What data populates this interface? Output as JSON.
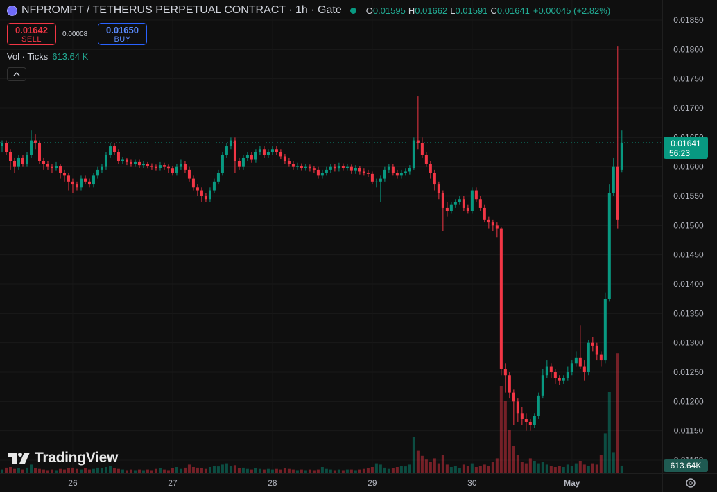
{
  "header": {
    "symbol": "NFPROMPT / TETHERUS PERPETUAL CONTRACT · 1h · Gate",
    "ohlc": [
      {
        "label": "O",
        "value": "0.01595"
      },
      {
        "label": "H",
        "value": "0.01662"
      },
      {
        "label": "L",
        "value": "0.01591"
      },
      {
        "label": "C",
        "value": "0.01641"
      }
    ],
    "change": "+0.00045 (+2.82%)",
    "sell": {
      "price": "0.01642",
      "label": "SELL"
    },
    "spread": "0.00008",
    "buy": {
      "price": "0.01650",
      "label": "BUY"
    },
    "brand": "TradingView"
  },
  "chart_data": {
    "type": "candlestick",
    "up_color": "#089981",
    "down_color": "#f23645",
    "grid": true,
    "xlim": [
      -0.5,
      158.7
    ],
    "xticks": [
      {
        "value": 17,
        "label": "26"
      },
      {
        "value": 41,
        "label": "27"
      },
      {
        "value": 65,
        "label": "28"
      },
      {
        "value": 89,
        "label": "29"
      },
      {
        "value": 113,
        "label": "30"
      },
      {
        "value": 137,
        "label": "May"
      }
    ],
    "ylim": [
      0.011,
      0.0185
    ],
    "yticks": [
      {
        "value": 0.0185,
        "label": "0.01850"
      },
      {
        "value": 0.018,
        "label": "0.01800"
      },
      {
        "value": 0.0175,
        "label": "0.01750"
      },
      {
        "value": 0.017,
        "label": "0.01700"
      },
      {
        "value": 0.0165,
        "label": "0.01650"
      },
      {
        "value": 0.016,
        "label": "0.01600"
      },
      {
        "value": 0.0155,
        "label": "0.01550"
      },
      {
        "value": 0.015,
        "label": "0.01500"
      },
      {
        "value": 0.0145,
        "label": "0.01450"
      },
      {
        "value": 0.014,
        "label": "0.01400"
      },
      {
        "value": 0.0135,
        "label": "0.01350"
      },
      {
        "value": 0.013,
        "label": "0.01300"
      },
      {
        "value": 0.0125,
        "label": "0.01250"
      },
      {
        "value": 0.012,
        "label": "0.01200"
      },
      {
        "value": 0.0115,
        "label": "0.01150"
      },
      {
        "value": 0.011,
        "label": "0.01100"
      }
    ],
    "last_price": {
      "value": 0.01641,
      "label": "0.01641",
      "countdown": "56:23"
    },
    "open": [
      0.01635,
      0.0164,
      0.01625,
      0.0161,
      0.016,
      0.01615,
      0.01605,
      0.0162,
      0.01645,
      0.0164,
      0.0161,
      0.01605,
      0.016,
      0.01598,
      0.01602,
      0.0159,
      0.01585,
      0.01575,
      0.0157,
      0.01565,
      0.0158,
      0.01575,
      0.0157,
      0.01585,
      0.01595,
      0.016,
      0.0162,
      0.01635,
      0.01625,
      0.0161,
      0.01612,
      0.01608,
      0.01605,
      0.01608,
      0.01603,
      0.01605,
      0.01602,
      0.016,
      0.01598,
      0.01603,
      0.016,
      0.01597,
      0.0159,
      0.016,
      0.01605,
      0.01595,
      0.0158,
      0.01565,
      0.0156,
      0.0155,
      0.01545,
      0.0156,
      0.01575,
      0.0159,
      0.0162,
      0.01635,
      0.01645,
      0.0161,
      0.016,
      0.01615,
      0.0162,
      0.01612,
      0.01625,
      0.0163,
      0.0162,
      0.01625,
      0.0163,
      0.01625,
      0.01618,
      0.0161,
      0.01605,
      0.016,
      0.01602,
      0.01598,
      0.016,
      0.01597,
      0.01595,
      0.01585,
      0.0159,
      0.01595,
      0.016,
      0.01597,
      0.01602,
      0.01598,
      0.016,
      0.01593,
      0.01598,
      0.01592,
      0.0159,
      0.01588,
      0.01575,
      0.01575,
      0.0158,
      0.01595,
      0.016,
      0.0159,
      0.01585,
      0.0159,
      0.01592,
      0.01598,
      0.01645,
      0.0164,
      0.0162,
      0.01605,
      0.0159,
      0.0157,
      0.01555,
      0.0153,
      0.01525,
      0.01535,
      0.0154,
      0.01545,
      0.0153,
      0.01525,
      0.0156,
      0.01545,
      0.0153,
      0.0151,
      0.01505,
      0.015,
      0.01495,
      0.01255,
      0.01245,
      0.01215,
      0.012,
      0.0118,
      0.0117,
      0.01165,
      0.0116,
      0.01175,
      0.0121,
      0.01245,
      0.0126,
      0.0125,
      0.0124,
      0.01235,
      0.0124,
      0.0125,
      0.01265,
      0.01275,
      0.0126,
      0.0125,
      0.013,
      0.01295,
      0.0128,
      0.0127,
      0.01375,
      0.01555,
      0.016,
      0.01595
    ],
    "high": [
      0.01645,
      0.01645,
      0.0163,
      0.01615,
      0.0162,
      0.0162,
      0.01625,
      0.01662,
      0.01655,
      0.01645,
      0.01615,
      0.0161,
      0.01605,
      0.01608,
      0.01605,
      0.01595,
      0.0159,
      0.0158,
      0.01575,
      0.01585,
      0.01585,
      0.0158,
      0.0159,
      0.016,
      0.01605,
      0.01625,
      0.0164,
      0.0164,
      0.0163,
      0.01617,
      0.01615,
      0.01612,
      0.01612,
      0.01612,
      0.0161,
      0.01608,
      0.01606,
      0.01604,
      0.01608,
      0.01607,
      0.01604,
      0.01602,
      0.01605,
      0.01612,
      0.0161,
      0.016,
      0.01585,
      0.0157,
      0.01565,
      0.01555,
      0.01565,
      0.0158,
      0.01595,
      0.01625,
      0.0164,
      0.0165,
      0.0165,
      0.01615,
      0.0162,
      0.01625,
      0.01625,
      0.0163,
      0.01635,
      0.01635,
      0.0163,
      0.01635,
      0.01635,
      0.0163,
      0.01622,
      0.01615,
      0.0161,
      0.01607,
      0.01606,
      0.01605,
      0.01604,
      0.01602,
      0.016,
      0.01595,
      0.016,
      0.01605,
      0.01605,
      0.01607,
      0.01606,
      0.01605,
      0.01604,
      0.01603,
      0.01602,
      0.01597,
      0.01595,
      0.01592,
      0.0158,
      0.01585,
      0.016,
      0.01605,
      0.01605,
      0.01595,
      0.01595,
      0.01597,
      0.01603,
      0.0165,
      0.0172,
      0.0165,
      0.01625,
      0.0161,
      0.01595,
      0.01575,
      0.0156,
      0.0154,
      0.0154,
      0.01545,
      0.0155,
      0.0155,
      0.01535,
      0.01565,
      0.01565,
      0.0155,
      0.01535,
      0.01515,
      0.0151,
      0.01505,
      0.01497,
      0.01265,
      0.0125,
      0.0122,
      0.01205,
      0.0119,
      0.0118,
      0.0117,
      0.0118,
      0.01215,
      0.01255,
      0.0127,
      0.01265,
      0.01255,
      0.01245,
      0.01245,
      0.0126,
      0.0127,
      0.01285,
      0.0133,
      0.0127,
      0.01305,
      0.0131,
      0.013,
      0.01285,
      0.01385,
      0.0157,
      0.01615,
      0.01805,
      0.01662
    ],
    "low": [
      0.01625,
      0.0162,
      0.01595,
      0.0159,
      0.01595,
      0.016,
      0.016,
      0.01615,
      0.0163,
      0.01605,
      0.01595,
      0.01595,
      0.0159,
      0.01593,
      0.0158,
      0.01575,
      0.0156,
      0.01555,
      0.0156,
      0.0156,
      0.0157,
      0.01565,
      0.01565,
      0.0158,
      0.0159,
      0.01595,
      0.01615,
      0.0162,
      0.01605,
      0.01605,
      0.01603,
      0.016,
      0.016,
      0.01598,
      0.01598,
      0.01597,
      0.01595,
      0.01593,
      0.01593,
      0.01595,
      0.0159,
      0.01585,
      0.01585,
      0.01595,
      0.0159,
      0.01575,
      0.0156,
      0.0155,
      0.0154,
      0.0154,
      0.0154,
      0.01555,
      0.0157,
      0.01585,
      0.01615,
      0.0163,
      0.0159,
      0.01595,
      0.01595,
      0.0161,
      0.01607,
      0.01607,
      0.0162,
      0.01615,
      0.01615,
      0.0162,
      0.0162,
      0.01613,
      0.01605,
      0.016,
      0.01595,
      0.01595,
      0.01593,
      0.01593,
      0.01592,
      0.0159,
      0.0158,
      0.0158,
      0.01585,
      0.0159,
      0.01592,
      0.01592,
      0.01593,
      0.01593,
      0.01588,
      0.01588,
      0.01587,
      0.01585,
      0.01583,
      0.0157,
      0.01565,
      0.0154,
      0.01575,
      0.0159,
      0.01585,
      0.0158,
      0.0158,
      0.01585,
      0.01587,
      0.01595,
      0.0163,
      0.01615,
      0.016,
      0.0158,
      0.0156,
      0.01545,
      0.0149,
      0.01515,
      0.0152,
      0.0153,
      0.01535,
      0.01525,
      0.0152,
      0.0152,
      0.0154,
      0.01525,
      0.01505,
      0.01495,
      0.0149,
      0.0148,
      0.01245,
      0.01215,
      0.01205,
      0.0116,
      0.01165,
      0.0116,
      0.0115,
      0.0115,
      0.01155,
      0.0117,
      0.01205,
      0.0124,
      0.0124,
      0.0123,
      0.01228,
      0.0123,
      0.01235,
      0.01245,
      0.0126,
      0.01255,
      0.01235,
      0.01245,
      0.01285,
      0.0127,
      0.0126,
      0.01265,
      0.0137,
      0.0155,
      0.01495,
      0.01591
    ],
    "close": [
      0.0164,
      0.01625,
      0.0161,
      0.016,
      0.01615,
      0.01605,
      0.0162,
      0.01645,
      0.0164,
      0.0161,
      0.01605,
      0.016,
      0.01598,
      0.01602,
      0.0159,
      0.01585,
      0.01575,
      0.0157,
      0.01565,
      0.0158,
      0.01575,
      0.0157,
      0.01585,
      0.01595,
      0.016,
      0.0162,
      0.01635,
      0.01625,
      0.0161,
      0.01612,
      0.01608,
      0.01605,
      0.01608,
      0.01603,
      0.01605,
      0.01602,
      0.016,
      0.01598,
      0.01603,
      0.016,
      0.01597,
      0.0159,
      0.016,
      0.01605,
      0.01595,
      0.0158,
      0.01565,
      0.0156,
      0.0155,
      0.01545,
      0.0156,
      0.01575,
      0.0159,
      0.0162,
      0.01635,
      0.01645,
      0.0161,
      0.016,
      0.01615,
      0.0162,
      0.01612,
      0.01625,
      0.0163,
      0.0162,
      0.01625,
      0.0163,
      0.01625,
      0.01618,
      0.0161,
      0.01605,
      0.016,
      0.01602,
      0.01598,
      0.016,
      0.01597,
      0.01595,
      0.01585,
      0.0159,
      0.01595,
      0.016,
      0.01597,
      0.01602,
      0.01598,
      0.016,
      0.01593,
      0.01598,
      0.01592,
      0.0159,
      0.01588,
      0.01575,
      0.01575,
      0.0158,
      0.01595,
      0.016,
      0.0159,
      0.01585,
      0.0159,
      0.01592,
      0.01598,
      0.01645,
      0.0164,
      0.0162,
      0.01605,
      0.0159,
      0.0157,
      0.01555,
      0.0153,
      0.01525,
      0.01535,
      0.0154,
      0.01545,
      0.0153,
      0.01525,
      0.0156,
      0.01545,
      0.0153,
      0.0151,
      0.01505,
      0.015,
      0.01495,
      0.01255,
      0.01245,
      0.01215,
      0.012,
      0.0118,
      0.0117,
      0.01165,
      0.0116,
      0.01175,
      0.0121,
      0.01245,
      0.0126,
      0.0125,
      0.0124,
      0.01235,
      0.0124,
      0.0125,
      0.01265,
      0.01275,
      0.0126,
      0.0125,
      0.013,
      0.01295,
      0.0128,
      0.0127,
      0.01375,
      0.01555,
      0.016,
      0.0151,
      0.01641
    ],
    "volume": {
      "label": "Vol · Ticks",
      "legend_value": "613.64 K",
      "axis_label": "613.64K",
      "ylim": [
        0,
        12000000
      ],
      "values": [
        300000,
        450000,
        500000,
        350000,
        400000,
        300000,
        450000,
        700000,
        400000,
        350000,
        300000,
        250000,
        300000,
        250000,
        350000,
        300000,
        400000,
        450000,
        350000,
        300000,
        400000,
        300000,
        350000,
        450000,
        400000,
        500000,
        600000,
        400000,
        350000,
        300000,
        250000,
        300000,
        250000,
        300000,
        250000,
        300000,
        250000,
        350000,
        400000,
        300000,
        250000,
        400000,
        500000,
        350000,
        450000,
        700000,
        500000,
        450000,
        400000,
        350000,
        500000,
        600000,
        550000,
        700000,
        800000,
        600000,
        650000,
        400000,
        450000,
        350000,
        300000,
        400000,
        350000,
        300000,
        350000,
        300000,
        350000,
        300000,
        400000,
        350000,
        300000,
        250000,
        300000,
        250000,
        300000,
        250000,
        300000,
        500000,
        350000,
        300000,
        250000,
        300000,
        250000,
        300000,
        300000,
        250000,
        300000,
        350000,
        400000,
        500000,
        800000,
        700000,
        450000,
        350000,
        400000,
        500000,
        600000,
        550000,
        700000,
        2900000,
        1800000,
        1400000,
        1100000,
        900000,
        1200000,
        800000,
        1500000,
        700000,
        500000,
        600000,
        400000,
        700000,
        600000,
        800000,
        500000,
        600000,
        700000,
        600000,
        900000,
        1200000,
        7000000,
        5800000,
        3500000,
        2200000,
        1500000,
        900000,
        800000,
        1200000,
        1000000,
        800000,
        900000,
        700000,
        600000,
        500000,
        600000,
        500000,
        700000,
        600000,
        800000,
        1000000,
        700000,
        600000,
        800000,
        700000,
        1500000,
        3200000,
        6500000,
        1700000,
        9600000,
        613640
      ]
    }
  }
}
